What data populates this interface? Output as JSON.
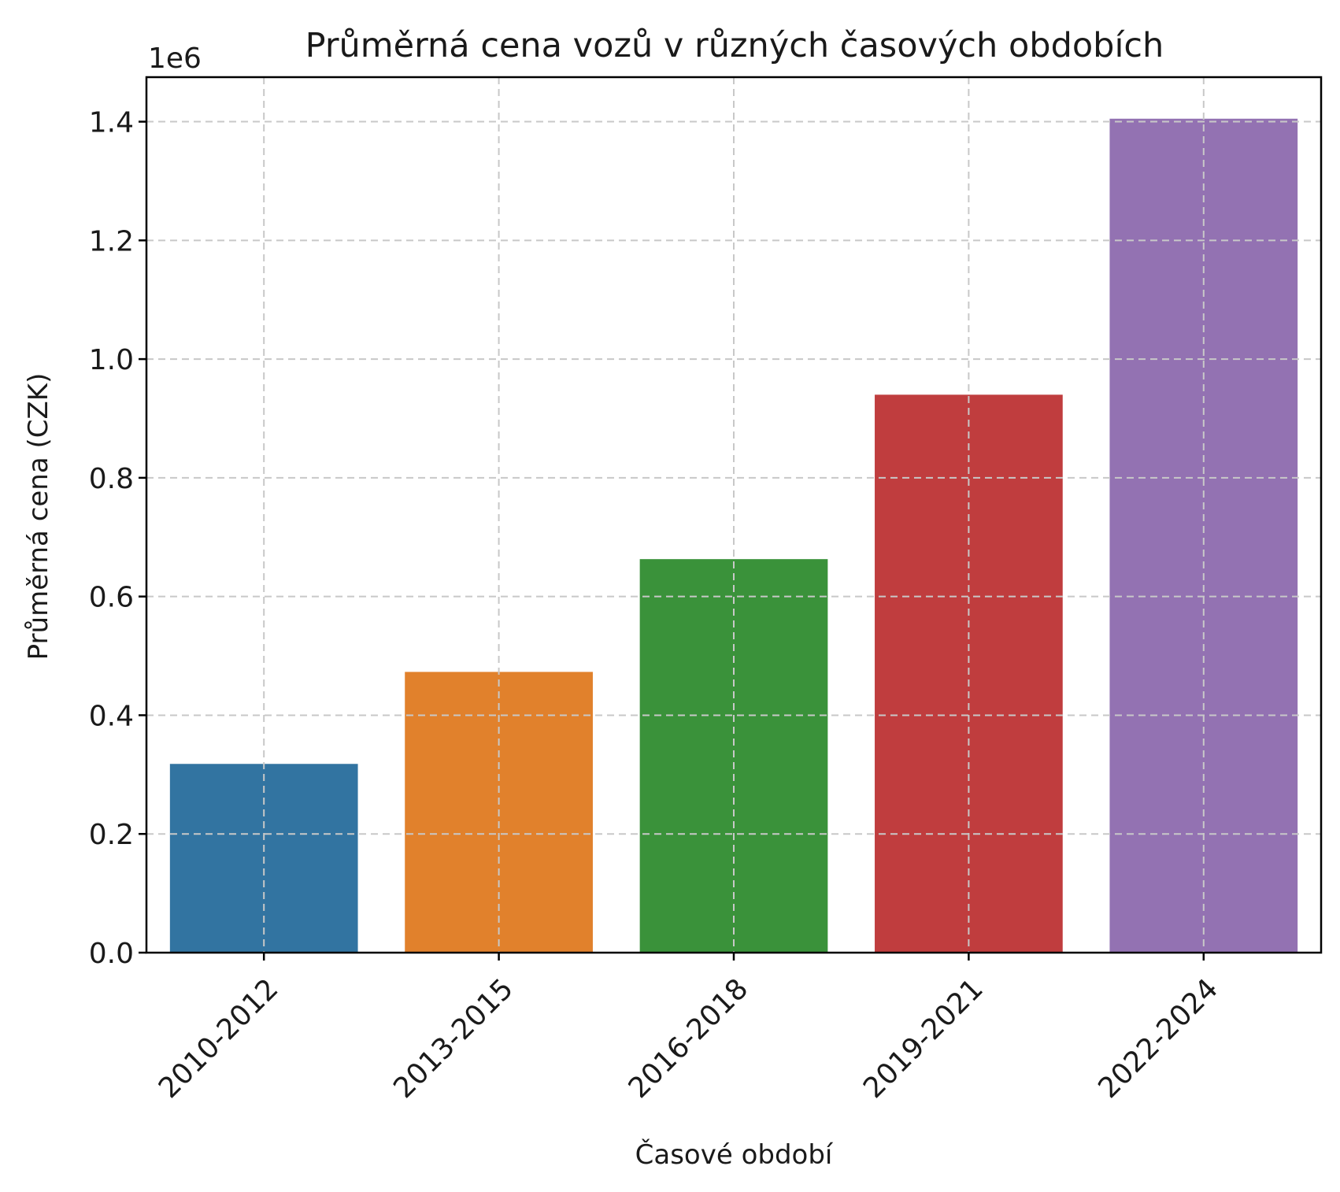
{
  "chart_data": {
    "type": "bar",
    "title": "Průměrná cena vozů v různých časových obdobích",
    "xlabel": "Časové období",
    "ylabel": "Průměrná cena (CZK)",
    "y_offset_label": "1e6",
    "categories": [
      "2010-2012",
      "2013-2015",
      "2016-2018",
      "2019-2021",
      "2022-2024"
    ],
    "values": [
      318000,
      473000,
      663000,
      940000,
      1405000
    ],
    "colors": [
      "#3274a1",
      "#e1812c",
      "#3a923a",
      "#c03d3e",
      "#9372b2"
    ],
    "ylim": [
      0,
      1475000
    ],
    "yticks": [
      0,
      200000,
      400000,
      600000,
      800000,
      1000000,
      1200000,
      1400000
    ],
    "ytick_labels": [
      "0.0",
      "0.2",
      "0.4",
      "0.6",
      "0.8",
      "1.0",
      "1.2",
      "1.4"
    ],
    "grid": true,
    "legend": "none"
  }
}
